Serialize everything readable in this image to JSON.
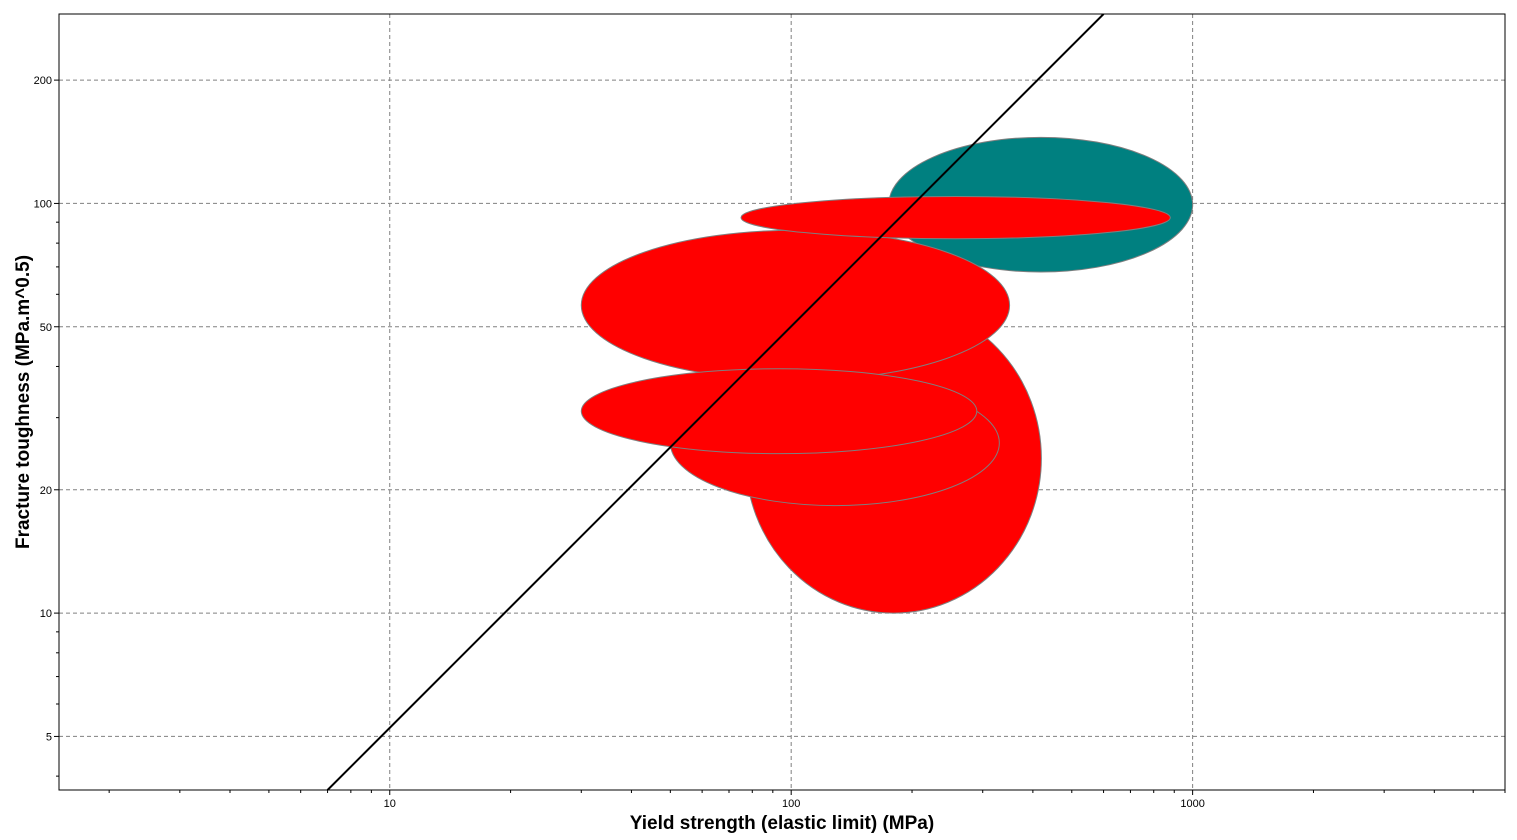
{
  "chart_data": {
    "type": "scatter",
    "subtype": "material-property-bubble-chart",
    "xlabel": "Yield strength (elastic limit) (MPa)",
    "ylabel": "Fracture toughness (MPa.m^0.5)",
    "x_scale": "log",
    "y_scale": "log",
    "xlim": [
      1.5,
      6000
    ],
    "ylim": [
      3.7,
      290
    ],
    "x_ticks": [
      10,
      100,
      1000
    ],
    "x_tick_labels": [
      "10",
      "100",
      "1000"
    ],
    "y_ticks": [
      5,
      10,
      20,
      50,
      100,
      200
    ],
    "y_tick_labels": [
      "5",
      "10",
      "20",
      "50",
      "100",
      "200"
    ],
    "grid": true,
    "legend": "none",
    "colors": {
      "teal": "#008080",
      "red": "#ff0000",
      "outline": "#7f7f7f",
      "line": "#000000",
      "grid": "#808080"
    },
    "bubbles": [
      {
        "color": "#008080",
        "x_range": [
          175,
          1000
        ],
        "y_range": [
          68,
          145
        ]
      },
      {
        "color": "#ff0000",
        "x_range": [
          77,
          420
        ],
        "y_range": [
          10,
          57
        ]
      },
      {
        "color": "#ff0000",
        "x_range": [
          30,
          350
        ],
        "y_range": [
          37,
          86
        ]
      },
      {
        "color": "#ff0000",
        "x_range": [
          50,
          330
        ],
        "y_range": [
          18.3,
          37
        ]
      },
      {
        "color": "#ff0000",
        "x_range": [
          30,
          290
        ],
        "y_range": [
          24.5,
          39.5
        ]
      },
      {
        "color": "#ff0000",
        "x_range": [
          75,
          880
        ],
        "y_range": [
          82,
          104
        ]
      }
    ],
    "guide_line": {
      "x": [
        7,
        600
      ],
      "y": [
        3.7,
        290
      ]
    }
  }
}
